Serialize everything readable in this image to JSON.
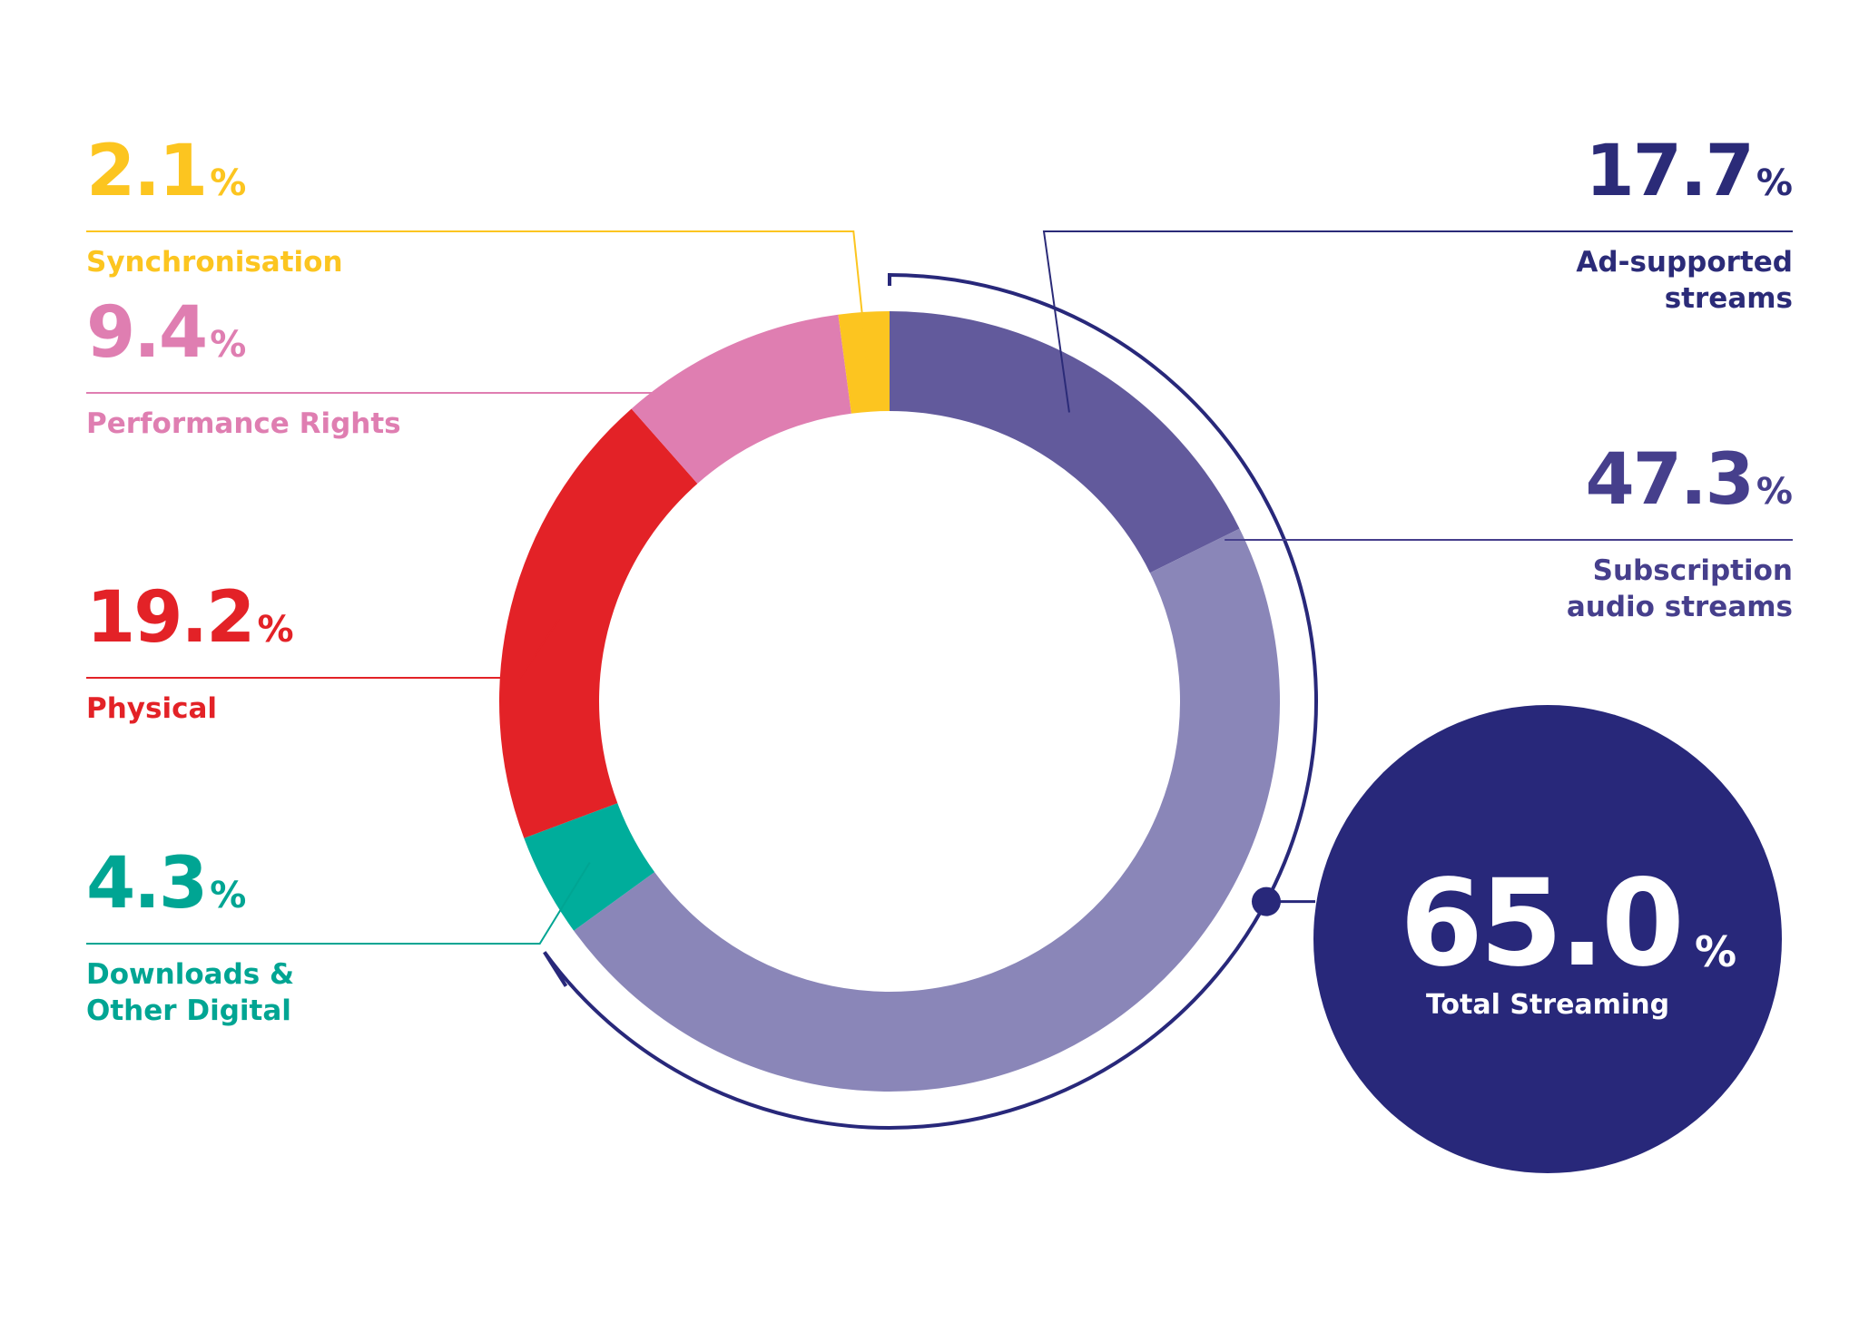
{
  "chart_data": {
    "type": "pie",
    "variant": "donut",
    "segments": [
      {
        "name": "Ad-supported streams",
        "label_lines": [
          "Ad-supported",
          "streams"
        ],
        "value": 17.7,
        "value_text": "17.7",
        "color": "#625a9c",
        "label_color": "#2b2b78",
        "side": "right"
      },
      {
        "name": "Subscription audio streams",
        "label_lines": [
          "Subscription",
          "audio streams"
        ],
        "value": 47.3,
        "value_text": "47.3",
        "color": "#8a86b8",
        "label_color": "#463f8c",
        "side": "right"
      },
      {
        "name": "Downloads & Other Digital",
        "label_lines": [
          "Downloads &",
          "Other Digital"
        ],
        "value": 4.3,
        "value_text": "4.3",
        "color": "#00ad9b",
        "label_color": "#00a593",
        "side": "left"
      },
      {
        "name": "Physical",
        "label_lines": [
          "Physical"
        ],
        "value": 19.2,
        "value_text": "19.2",
        "color": "#e32227",
        "label_color": "#e32227",
        "side": "left"
      },
      {
        "name": "Performance Rights",
        "label_lines": [
          "Performance Rights"
        ],
        "value": 9.4,
        "value_text": "9.4",
        "color": "#df7eb1",
        "label_color": "#df7eb1",
        "side": "left"
      },
      {
        "name": "Synchronisation",
        "label_lines": [
          "Synchronisation"
        ],
        "value": 2.1,
        "value_text": "2.1",
        "color": "#fcc520",
        "label_color": "#fcc520",
        "side": "left"
      }
    ],
    "percent_symbol": "%",
    "total": {
      "name": "Total Streaming",
      "value": 65.0,
      "value_text": "65.0",
      "color": "#28287a",
      "text_color": "#ffffff"
    },
    "bracket_color": "#28287a"
  }
}
